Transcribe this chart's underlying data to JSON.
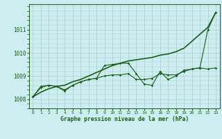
{
  "xlabel": "Graphe pression niveau de la mer (hPa)",
  "xlim": [
    -0.5,
    23.5
  ],
  "ylim": [
    1007.6,
    1012.1
  ],
  "yticks": [
    1008,
    1009,
    1010,
    1011
  ],
  "xticks": [
    0,
    1,
    2,
    3,
    4,
    5,
    6,
    7,
    8,
    9,
    10,
    11,
    12,
    13,
    14,
    15,
    16,
    17,
    18,
    19,
    20,
    21,
    22,
    23
  ],
  "bg_color": "#cceef0",
  "grid_color_major": "#aacccc",
  "line_color": "#1a5c1a",
  "series_zigzag": [
    1008.1,
    1008.55,
    1008.6,
    1008.55,
    1008.35,
    1008.6,
    1008.75,
    1008.85,
    1008.9,
    1009.45,
    1009.5,
    1009.55,
    1009.55,
    1009.1,
    1008.65,
    1008.6,
    1009.2,
    1008.85,
    1009.0,
    1009.25,
    1009.3,
    1009.35,
    1011.0,
    1011.75
  ],
  "series_flat": [
    1008.1,
    1008.5,
    1008.6,
    1008.55,
    1008.4,
    1008.6,
    1008.75,
    1008.85,
    1008.9,
    1009.0,
    1009.05,
    1009.05,
    1009.1,
    1008.85,
    1008.85,
    1008.9,
    1009.1,
    1009.05,
    1009.05,
    1009.2,
    1009.3,
    1009.35,
    1009.3,
    1009.35
  ],
  "series_diagonal": [
    1008.1,
    1008.3,
    1008.45,
    1008.55,
    1008.6,
    1008.75,
    1008.85,
    1009.0,
    1009.15,
    1009.3,
    1009.45,
    1009.55,
    1009.65,
    1009.7,
    1009.75,
    1009.8,
    1009.9,
    1009.95,
    1010.05,
    1010.2,
    1010.5,
    1010.8,
    1011.1,
    1011.75
  ]
}
